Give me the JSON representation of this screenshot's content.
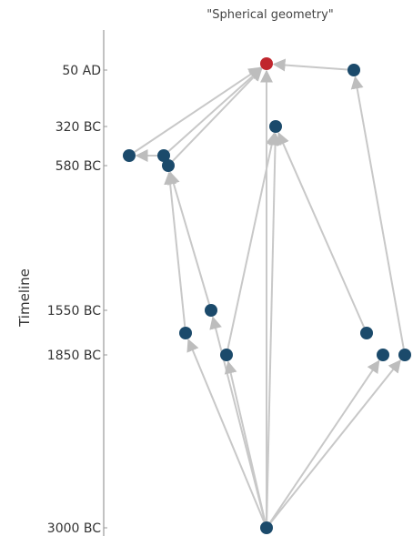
{
  "title": "\"Spherical geometry\"",
  "axis": {
    "label": "Timeline",
    "ticks": [
      {
        "label": "50 AD",
        "year": 50
      },
      {
        "label": "320 BC",
        "year": -320
      },
      {
        "label": "580 BC",
        "year": -580
      },
      {
        "label": "1550 BC",
        "year": -1550
      },
      {
        "label": "1850 BC",
        "year": -1850
      },
      {
        "label": "3000 BC",
        "year": -3000
      }
    ]
  },
  "colors": {
    "node": "#1b4a6b",
    "highlight": "#c0262d",
    "edge": "#c8c8c8",
    "axis": "#999999"
  },
  "nodes": [
    {
      "id": "n-root",
      "year": 50,
      "highlight": true
    },
    {
      "id": "n-50ad-right",
      "year": 50
    },
    {
      "id": "n-320bc",
      "year": -320
    },
    {
      "id": "n-580bc-left",
      "year": -580
    },
    {
      "id": "n-580bc-mid1",
      "year": -580
    },
    {
      "id": "n-580bc-mid2",
      "year": -580
    },
    {
      "id": "n-1550bc",
      "year": -1550
    },
    {
      "id": "n-1850bc-a",
      "year": -1850
    },
    {
      "id": "n-1850bc-b",
      "year": -1850
    },
    {
      "id": "n-1850bc-c",
      "year": -1850
    },
    {
      "id": "n-1850bc-d",
      "year": -1850
    },
    {
      "id": "n-1850bc-e",
      "year": -1850
    },
    {
      "id": "n-3000bc",
      "year": -3000
    }
  ],
  "edges": [
    {
      "from": "n-50ad-right",
      "to": "n-root"
    },
    {
      "from": "n-580bc-left",
      "to": "n-root"
    },
    {
      "from": "n-580bc-mid1",
      "to": "n-580bc-left"
    },
    {
      "from": "n-580bc-mid1",
      "to": "n-root"
    },
    {
      "from": "n-580bc-mid2",
      "to": "n-root"
    },
    {
      "from": "n-1550bc",
      "to": "n-580bc-mid2"
    },
    {
      "from": "n-1850bc-a",
      "to": "n-580bc-mid2"
    },
    {
      "from": "n-1850bc-b",
      "to": "n-320bc"
    },
    {
      "from": "n-1850bc-c",
      "to": "n-320bc"
    },
    {
      "from": "n-1850bc-e",
      "to": "n-50ad-right"
    },
    {
      "from": "n-3000bc",
      "to": "n-root"
    },
    {
      "from": "n-3000bc",
      "to": "n-320bc"
    },
    {
      "from": "n-3000bc",
      "to": "n-1550bc"
    },
    {
      "from": "n-3000bc",
      "to": "n-1850bc-a"
    },
    {
      "from": "n-3000bc",
      "to": "n-1850bc-b"
    },
    {
      "from": "n-3000bc",
      "to": "n-1850bc-d"
    },
    {
      "from": "n-3000bc",
      "to": "n-1850bc-e"
    }
  ]
}
